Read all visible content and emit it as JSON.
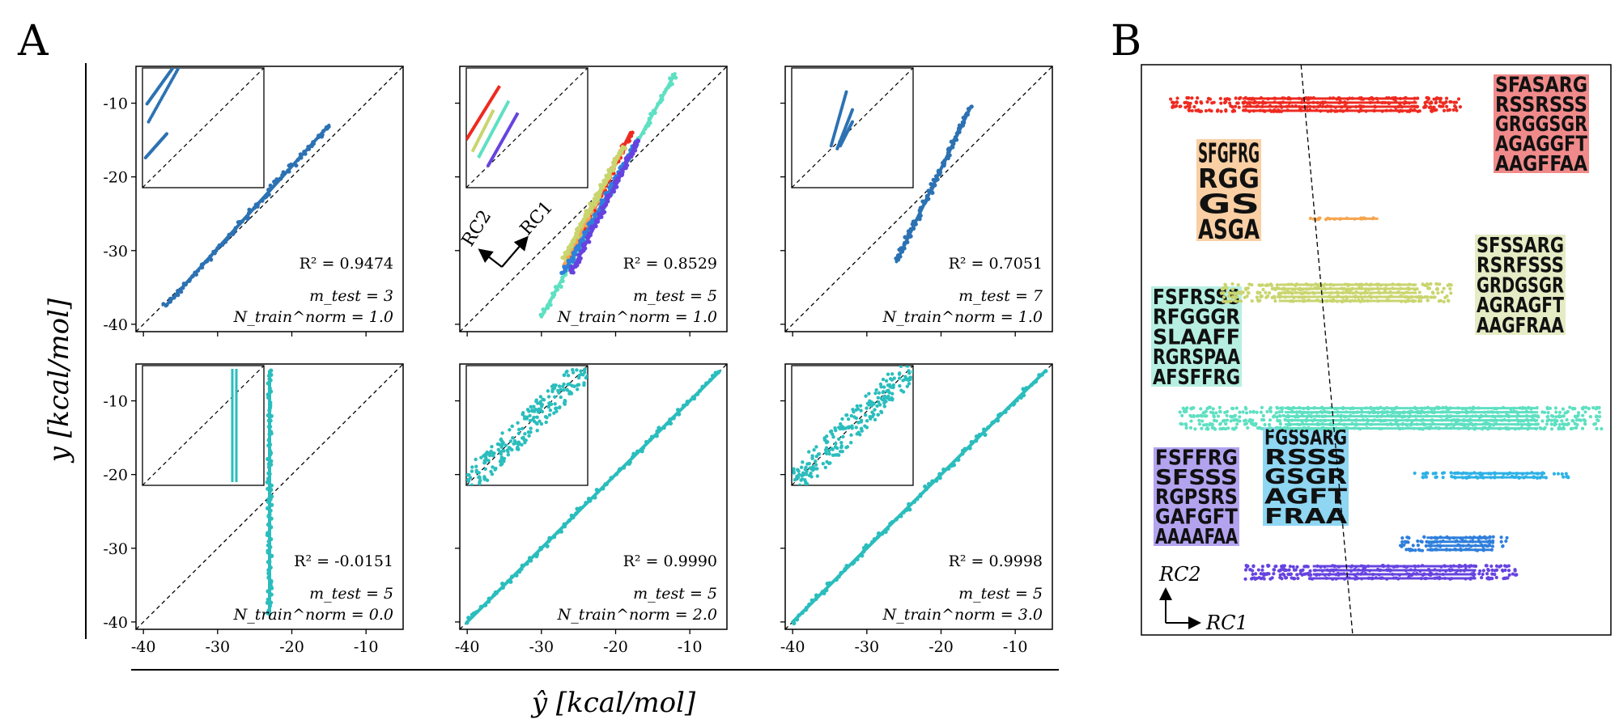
{
  "labels": {
    "panel_a": "A",
    "panel_b": "B"
  },
  "axes": {
    "ylabel": "y [kcal/mol]",
    "xlabel": "ŷ [kcal/mol]",
    "ticks": [
      -40,
      -30,
      -20,
      -10
    ],
    "tick_labels": [
      "-40",
      "-30",
      "-20",
      "-10"
    ]
  },
  "chart_data": [
    {
      "type": "scatter",
      "id": "a1",
      "title": "",
      "r2_label": "R² = 0.9474",
      "m_test_label": "m_test = 3",
      "n_train_label": "N_train^norm = 1.0",
      "xlim": [
        -41,
        -5
      ],
      "ylim": [
        -41,
        -5
      ],
      "series": [
        {
          "name": "all",
          "color": "#2c72b3",
          "x0": -37,
          "y0": -37.5,
          "x1": -15,
          "y1": -13
        }
      ],
      "inset": {
        "color": "#2c72b3",
        "lines": [
          [
            -38.5,
            -12,
            -30,
            0
          ],
          [
            -38,
            -18,
            -27,
            2
          ],
          [
            -39,
            -30,
            -32,
            -22
          ]
        ]
      }
    },
    {
      "type": "scatter",
      "id": "a2",
      "title": "",
      "r2_label": "R² = 0.8529",
      "m_test_label": "m_test = 5",
      "n_train_label": "N_train^norm = 1.0",
      "xlim": [
        -41,
        -5
      ],
      "ylim": [
        -41,
        -5
      ],
      "series": [
        {
          "name": "red",
          "color": "#ee2a20",
          "x0": -27,
          "y0": -33,
          "x1": -18,
          "y1": -14
        },
        {
          "name": "orange",
          "color": "#f6a54e",
          "x0": -27,
          "y0": -32,
          "x1": -19,
          "y1": -16
        },
        {
          "name": "yellow-green",
          "color": "#c9d56e",
          "x0": -27,
          "y0": -31,
          "x1": -19,
          "y1": -16
        },
        {
          "name": "teal",
          "color": "#5ee0c2",
          "x0": -30,
          "y0": -39,
          "x1": -12,
          "y1": -6
        },
        {
          "name": "blue",
          "color": "#2f7fdc",
          "x0": -27,
          "y0": -33,
          "x1": -17,
          "y1": -15
        },
        {
          "name": "violet",
          "color": "#6643e0",
          "x0": -26,
          "y0": -33,
          "x1": -17,
          "y1": -15
        }
      ],
      "arrows": {
        "rc1": "RC1",
        "rc2": "RC2"
      },
      "inset": {
        "lines_colored": [
          {
            "color": "#ee2a20",
            "pts": [
              -40,
              -24,
              -29,
              -6
            ]
          },
          {
            "color": "#c9d56e",
            "pts": [
              -38,
              -28,
              -31,
              -14
            ]
          },
          {
            "color": "#5ee0c2",
            "pts": [
              -36,
              -30,
              -26,
              -11
            ]
          },
          {
            "color": "#6643e0",
            "pts": [
              -33,
              -33,
              -23,
              -15
            ]
          }
        ]
      }
    },
    {
      "type": "scatter",
      "id": "a3",
      "title": "",
      "r2_label": "R² = 0.7051",
      "m_test_label": "m_test = 7",
      "n_train_label": "N_train^norm = 1.0",
      "xlim": [
        -41,
        -5
      ],
      "ylim": [
        -41,
        -5
      ],
      "series": [
        {
          "name": "all",
          "color": "#2c72b3",
          "x0": -26,
          "y0": -31.5,
          "x1": -16,
          "y1": -10.5
        }
      ],
      "inset": {
        "color": "#2c72b3",
        "lines": [
          [
            -27,
            -26,
            -22,
            -8
          ],
          [
            -25,
            -27,
            -20,
            -14
          ],
          [
            -24,
            -26,
            -20,
            -18
          ]
        ]
      }
    },
    {
      "type": "scatter",
      "id": "a4",
      "title": "",
      "r2_label": "R² = -0.0151",
      "m_test_label": "m_test = 5",
      "n_train_label": "N_train^norm = 0.0",
      "xlim": [
        -41,
        -5
      ],
      "ylim": [
        -41,
        -5
      ],
      "series": [
        {
          "name": "all",
          "color": "#2bbdbd",
          "x0": -23,
          "y0": -39,
          "x1": -23,
          "y1": -6
        }
      ],
      "inset": {
        "color": "#2bbdbd",
        "vlines": [
          -26,
          -25.5
        ]
      }
    },
    {
      "type": "scatter",
      "id": "a5",
      "title": "",
      "r2_label": "R² = 0.9990",
      "m_test_label": "m_test = 5",
      "n_train_label": "N_train^norm = 2.0",
      "xlim": [
        -41,
        -5
      ],
      "ylim": [
        -41,
        -5
      ],
      "series": [
        {
          "name": "all",
          "color": "#2bbdbd",
          "x0": -40,
          "y0": -40,
          "x1": -6,
          "y1": -6
        }
      ],
      "inset": {
        "color": "#2bbdbd",
        "band": true
      }
    },
    {
      "type": "scatter",
      "id": "a6",
      "title": "",
      "r2_label": "R² = 0.9998",
      "m_test_label": "m_test = 5",
      "n_train_label": "N_train^norm = 3.0",
      "xlim": [
        -41,
        -5
      ],
      "ylim": [
        -41,
        -5
      ],
      "series": [
        {
          "name": "all",
          "color": "#2bbdbd",
          "x0": -40,
          "y0": -40,
          "x1": -6,
          "y1": -6
        }
      ],
      "inset": {
        "color": "#2bbdbd",
        "band": true
      }
    },
    {
      "type": "scatter",
      "id": "b",
      "title": "",
      "axes_labels": {
        "rc1": "RC1",
        "rc2": "RC2"
      },
      "clusters": [
        {
          "name": "red",
          "color": "#ee2a20",
          "rc1": [
            0.06,
            0.68
          ],
          "rc2": 0.93,
          "rows": 4
        },
        {
          "name": "orange",
          "color": "#f6a54e",
          "rc1": [
            0.36,
            0.53
          ],
          "rc2": 0.73,
          "rows": 1
        },
        {
          "name": "yellow-green",
          "color": "#c9d56e",
          "rc1": [
            0.17,
            0.66
          ],
          "rc2": 0.6,
          "rows": 5
        },
        {
          "name": "aquamarine",
          "color": "#5ee0c2",
          "rc1": [
            0.08,
            0.98
          ],
          "rc2": 0.38,
          "rows": 6
        },
        {
          "name": "sky-blue",
          "color": "#2db1e6",
          "rc1": [
            0.58,
            0.91
          ],
          "rc2": 0.28,
          "rows": 2
        },
        {
          "name": "blue",
          "color": "#2f7fdc",
          "rc1": [
            0.55,
            0.78
          ],
          "rc2": 0.16,
          "rows": 4
        },
        {
          "name": "violet",
          "color": "#6643e0",
          "rc1": [
            0.22,
            0.8
          ],
          "rc2": 0.11,
          "rows": 4
        }
      ],
      "logos": [
        {
          "name": "red-logo",
          "color": "#f08a8a",
          "rows": [
            "SFASARG",
            "RSSRSSS",
            "GRGGSGR",
            "AGAGGFT",
            "AAGFFAA"
          ]
        },
        {
          "name": "orange-logo",
          "color": "#f9cfa3",
          "rows": [
            "SFGFRG",
            "RGG",
            "GS",
            "ASGA"
          ]
        },
        {
          "name": "yellow-green-logo",
          "color": "#e5ebc4",
          "rows": [
            "SFSSARG",
            "RSRFSSS",
            "GRDGSGR",
            "AGRAGFT",
            "AAGFRAA"
          ]
        },
        {
          "name": "aquamarine-logo",
          "color": "#b6efe1",
          "rows": [
            "FSFRSSS",
            "RFGGGR",
            "SLAAFF",
            "RGRSPAA",
            "AFSFFRG"
          ]
        },
        {
          "name": "violet-logo",
          "color": "#b3a3ef",
          "rows": [
            "FSFFRG",
            "SFSSS",
            "RGPSRS",
            "GAFGFT",
            "AAAAFAA"
          ]
        },
        {
          "name": "sky-blue-logo",
          "color": "#8ed6f2",
          "rows": [
            "FGSSARG",
            "RSSS",
            "GSGR",
            "AGFT",
            "FRAA"
          ]
        }
      ],
      "divider": {
        "rc1_top": 0.34,
        "rc1_bottom": 0.45
      }
    }
  ]
}
